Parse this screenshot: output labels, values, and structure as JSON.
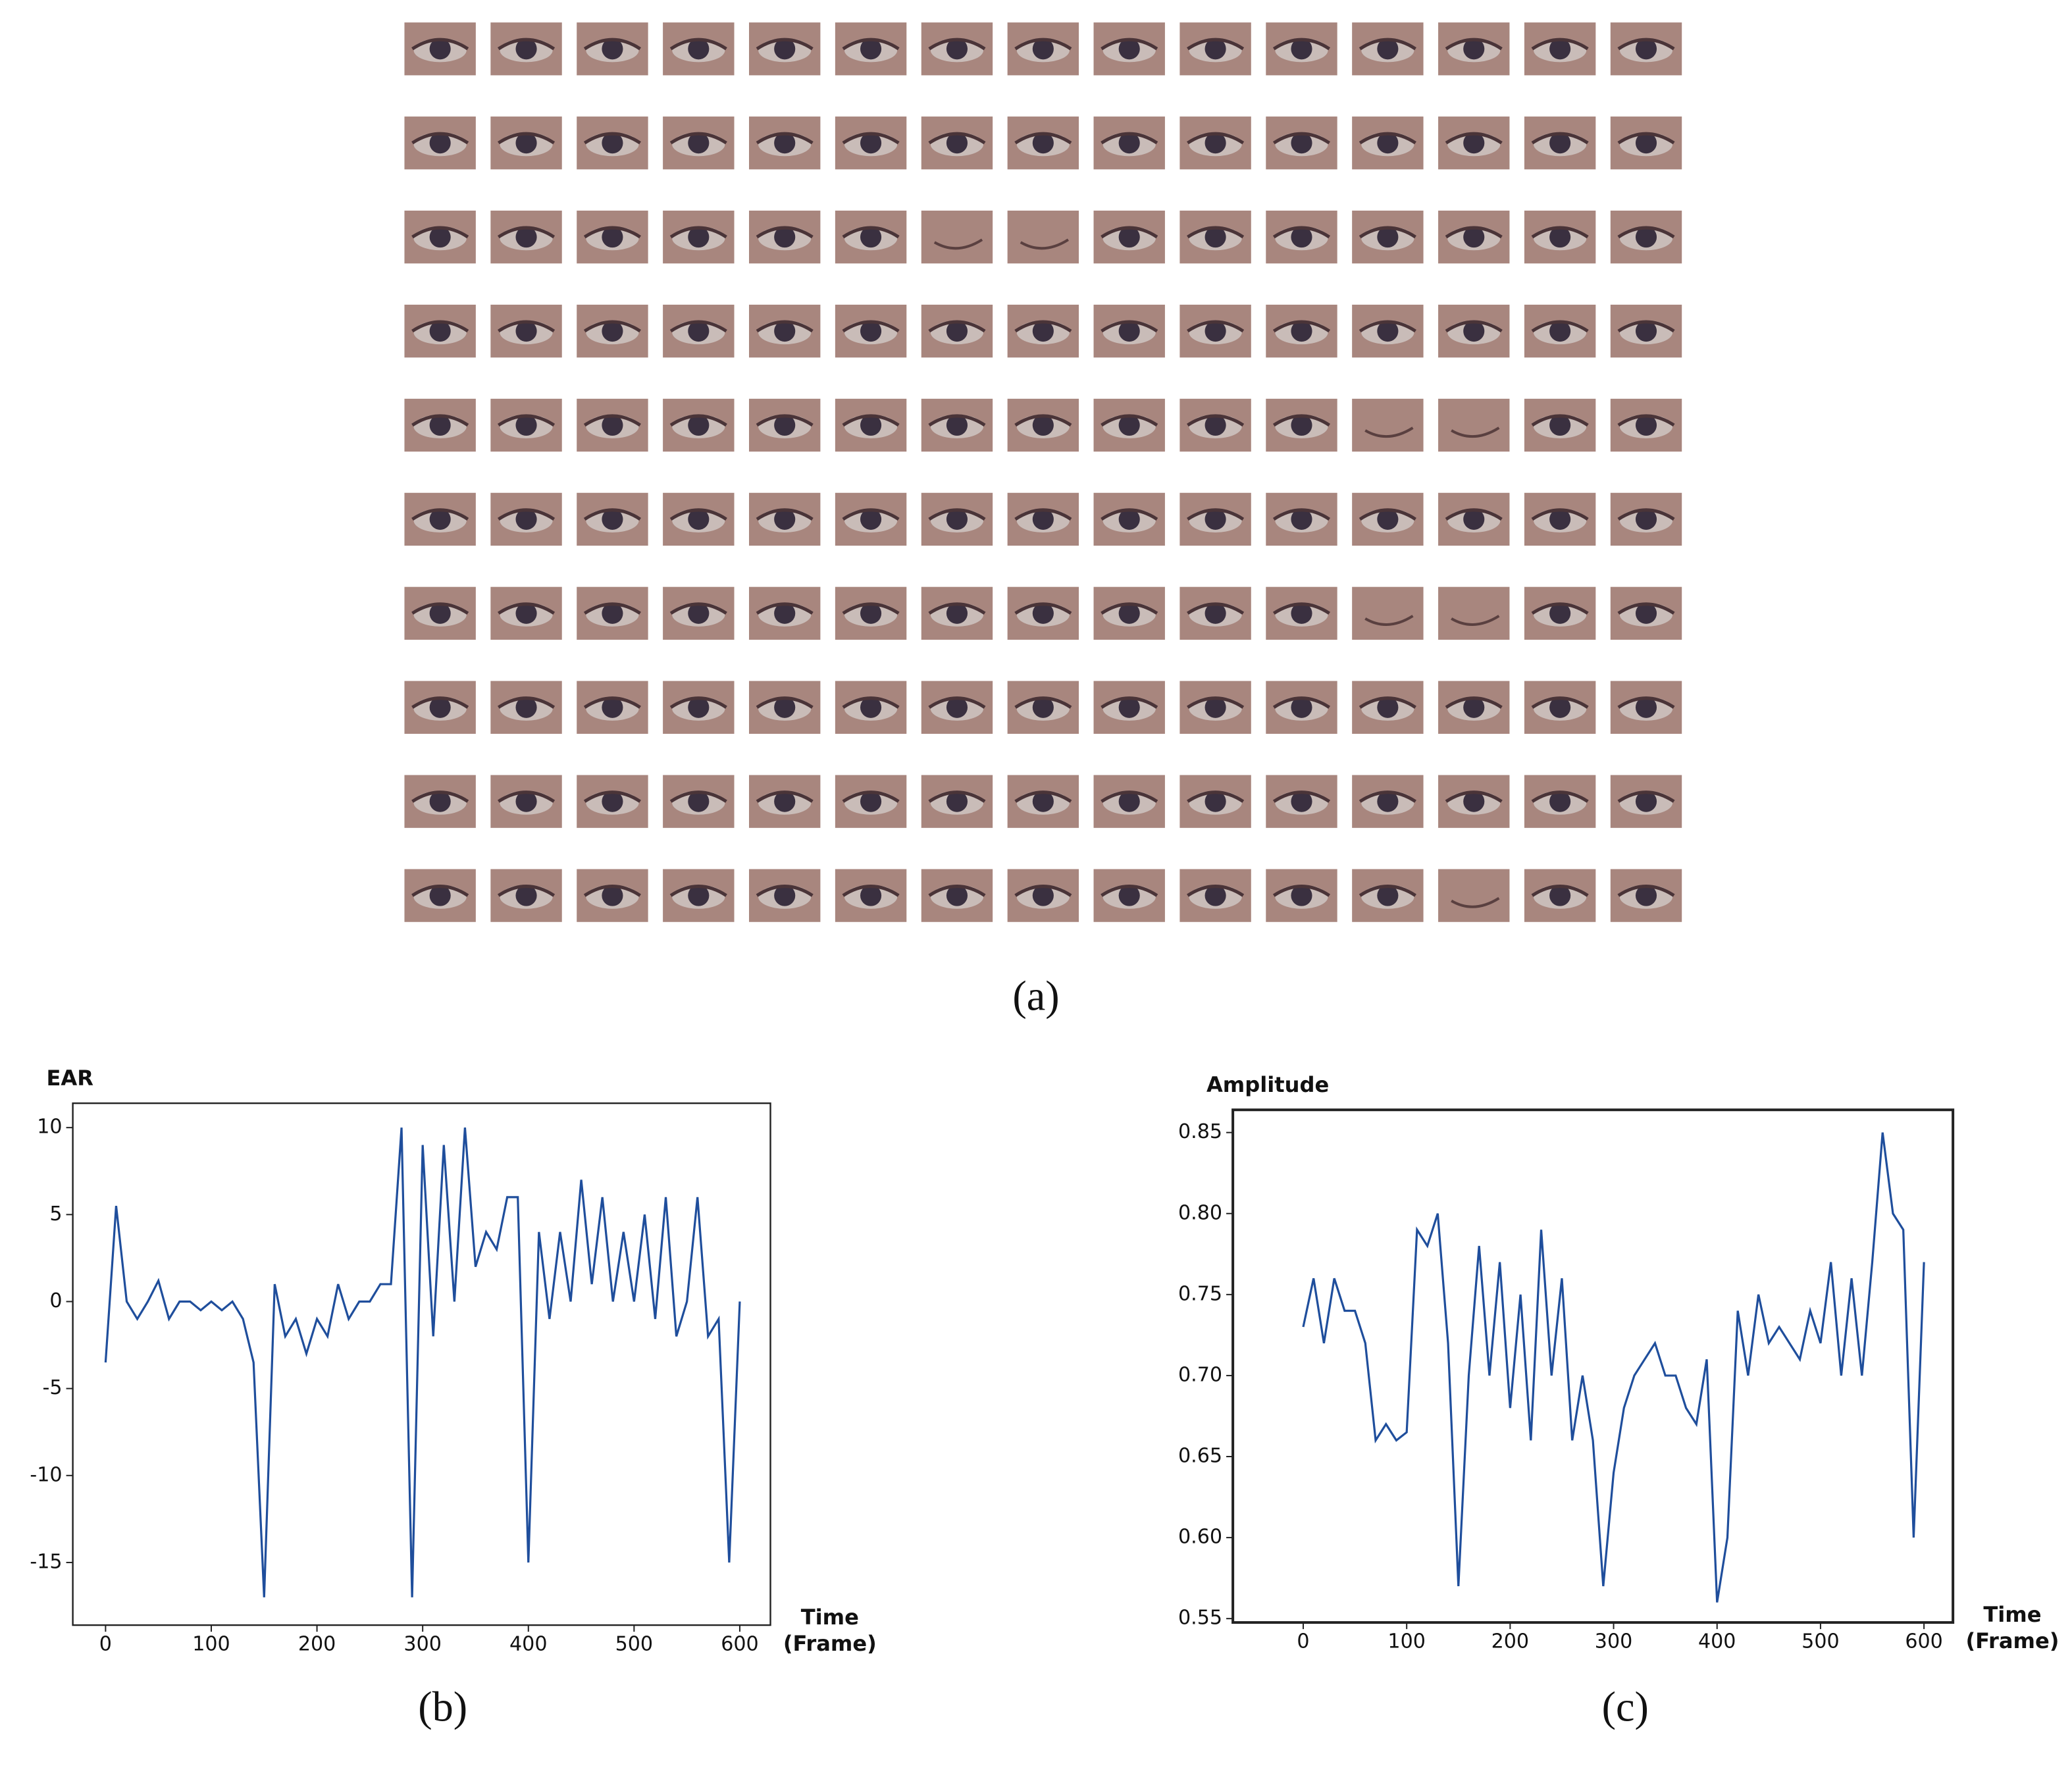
{
  "panel_a": {
    "label": "(a)"
  },
  "chart_data": [
    {
      "type": "line",
      "label": "(b)",
      "ylabel": "EAR",
      "xlabel": "Time (Frame)",
      "color": "#1f4e9c",
      "x": [
        0,
        10,
        20,
        30,
        40,
        50,
        60,
        70,
        80,
        90,
        100,
        110,
        120,
        130,
        140,
        150,
        160,
        170,
        180,
        190,
        200,
        210,
        220,
        230,
        240,
        250,
        260,
        270,
        280,
        290,
        300,
        310,
        320,
        330,
        340,
        350,
        360,
        370,
        380,
        390,
        400,
        410,
        420,
        430,
        440,
        450,
        460,
        470,
        480,
        490,
        500,
        510,
        520,
        530,
        540,
        550,
        560,
        570,
        580,
        590,
        600
      ],
      "values": [
        -3.5,
        5.5,
        0,
        -1,
        0,
        1.2,
        -1,
        0,
        0,
        -0.5,
        0,
        -0.5,
        0,
        -1,
        -3.5,
        -17,
        1,
        -2,
        -1,
        -3,
        -1,
        -2,
        1,
        -1,
        0,
        0,
        1,
        1,
        10,
        -17,
        9,
        -2,
        9,
        0,
        10,
        2,
        4,
        3,
        6,
        6,
        -15,
        4,
        -1,
        4,
        0,
        7,
        1,
        6,
        0,
        4,
        0,
        5,
        -1,
        6,
        -2,
        0,
        6,
        -2,
        -1,
        -15,
        0
      ],
      "xlim": [
        -31,
        629
      ],
      "ylim": [
        -18.6,
        11.4
      ],
      "xticks": [
        0,
        100,
        200,
        300,
        400,
        500,
        600
      ],
      "yticks": [
        -15,
        -10,
        -5,
        0,
        5,
        10
      ]
    },
    {
      "type": "line",
      "label": "(c)",
      "ylabel": "Amplitude",
      "xlabel": "Time (Frame)",
      "color": "#1f4e9c",
      "x": [
        0,
        10,
        20,
        30,
        40,
        50,
        60,
        70,
        80,
        90,
        100,
        110,
        120,
        130,
        140,
        150,
        160,
        170,
        180,
        190,
        200,
        210,
        220,
        230,
        240,
        250,
        260,
        270,
        280,
        290,
        300,
        310,
        320,
        330,
        340,
        350,
        360,
        370,
        380,
        390,
        400,
        410,
        420,
        430,
        440,
        450,
        460,
        470,
        480,
        490,
        500,
        510,
        520,
        530,
        540,
        550,
        560,
        570,
        580,
        590,
        600
      ],
      "values": [
        0.73,
        0.76,
        0.72,
        0.76,
        0.74,
        0.74,
        0.72,
        0.66,
        0.67,
        0.66,
        0.665,
        0.79,
        0.78,
        0.8,
        0.72,
        0.57,
        0.7,
        0.78,
        0.7,
        0.77,
        0.68,
        0.75,
        0.66,
        0.79,
        0.7,
        0.76,
        0.66,
        0.7,
        0.66,
        0.57,
        0.64,
        0.68,
        0.7,
        0.71,
        0.72,
        0.7,
        0.7,
        0.68,
        0.67,
        0.71,
        0.56,
        0.6,
        0.74,
        0.7,
        0.75,
        0.72,
        0.73,
        0.72,
        0.71,
        0.74,
        0.72,
        0.77,
        0.7,
        0.76,
        0.7,
        0.77,
        0.85,
        0.8,
        0.79,
        0.6,
        0.77
      ],
      "xlim": [
        -68,
        628
      ],
      "ylim": [
        0.5476,
        0.864
      ],
      "xticks": [
        0,
        100,
        200,
        300,
        400,
        500,
        600
      ],
      "yticks": [
        0.55,
        {
          "value": 0.6,
          "label": "0.60"
        },
        0.65,
        {
          "value": 0.7,
          "label": "0.70"
        },
        0.75,
        {
          "value": 0.8,
          "label": "0.80"
        },
        0.85
      ]
    }
  ]
}
